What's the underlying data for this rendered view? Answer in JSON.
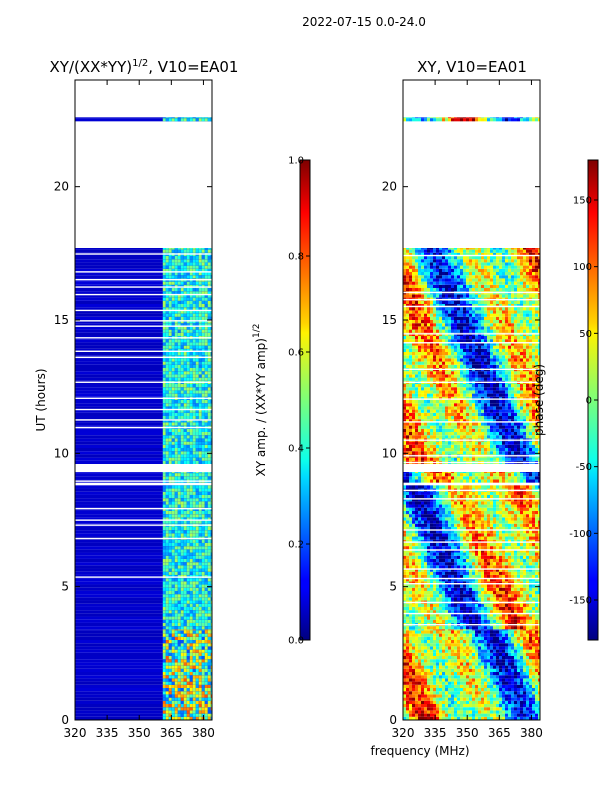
{
  "suptitle": "2022-07-15 0.0-24.0",
  "chart_data": [
    {
      "type": "heatmap",
      "title": "XY/(XX*YY)",
      "title_sup": "1/2",
      "title_suffix": ", V10=EA01",
      "ylabel": "UT (hours)",
      "xlabel": "",
      "xlim": [
        320,
        384
      ],
      "ylim": [
        0,
        24
      ],
      "xticks": [
        320,
        335,
        350,
        365,
        380
      ],
      "yticks": [
        0,
        5,
        10,
        15,
        20
      ],
      "colormap": "jet",
      "colorbar": {
        "label": "XY amp. / (XX*YY amp)",
        "label_sup": "1/2",
        "range": [
          0.0,
          1.0
        ],
        "ticks": [
          "0.0",
          "0.2",
          "0.4",
          "0.6",
          "0.8",
          "1.0"
        ]
      },
      "data_present_hours": [
        [
          0,
          3.4
        ],
        [
          3.4,
          8.8
        ],
        [
          8.9,
          9.3
        ],
        [
          9.6,
          17.7
        ],
        [
          22.45,
          22.6
        ]
      ],
      "bright_band_mhz": [
        361,
        382
      ]
    },
    {
      "type": "heatmap",
      "title": "XY, V10=EA01",
      "xlabel": "frequency (MHz)",
      "xlim": [
        320,
        384
      ],
      "ylim": [
        0,
        24
      ],
      "xticks": [
        320,
        335,
        350,
        365,
        380
      ],
      "yticks": [
        0,
        5,
        10,
        15,
        20
      ],
      "colormap": "jet",
      "colorbar": {
        "label": "phase (deg)",
        "range": [
          -180,
          180
        ],
        "ticks": [
          "-150",
          "-100",
          "-50",
          "0",
          "50",
          "100",
          "150"
        ]
      },
      "data_present_hours": [
        [
          0,
          3.4
        ],
        [
          3.4,
          8.8
        ],
        [
          8.9,
          9.3
        ],
        [
          9.6,
          17.7
        ],
        [
          22.45,
          22.6
        ]
      ]
    }
  ]
}
